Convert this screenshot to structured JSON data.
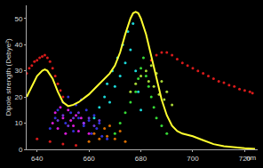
{
  "chart_data": {
    "type": "scatter",
    "y_label": "Dipole strength (Debye²)",
    "x_label": "nm",
    "xlim": [
      636,
      725
    ],
    "xticks": [
      640,
      660,
      680,
      700,
      720
    ],
    "ylim": [
      0,
      55
    ],
    "yticks": [
      0,
      10,
      20,
      30,
      40,
      50
    ],
    "grid": false,
    "series": [
      {
        "type": "scatter",
        "color": "#ff2020",
        "marker": "circle",
        "x": [
          636,
          637,
          638,
          639,
          640,
          641,
          642,
          643,
          644,
          645,
          646,
          647,
          648,
          649,
          650,
          684,
          686,
          688,
          690,
          692,
          694,
          696,
          698,
          700,
          702,
          704,
          706,
          708,
          710,
          712,
          714,
          716,
          718,
          720,
          722,
          723,
          640,
          645,
          650,
          655
        ],
        "values": [
          29,
          31,
          32,
          33.5,
          34,
          35,
          35.5,
          36,
          35,
          33.5,
          31,
          28,
          25,
          22.5,
          20,
          34,
          36,
          37,
          37,
          36,
          34.5,
          33,
          32,
          31,
          30,
          29,
          28,
          27,
          26,
          25.5,
          24.5,
          24,
          23,
          22.5,
          22,
          21.5,
          4,
          3,
          2,
          1.5
        ]
      },
      {
        "type": "scatter",
        "color": "#3a3aff",
        "marker": "circle",
        "x": [
          645,
          647,
          648,
          650,
          651,
          652,
          653,
          654,
          655,
          656,
          657,
          658,
          659,
          660,
          661,
          662,
          663,
          664,
          665,
          667
        ],
        "values": [
          8,
          12,
          15,
          18,
          10,
          20,
          14,
          7,
          17,
          12,
          19,
          9,
          15,
          11,
          6,
          13,
          8,
          10,
          5,
          4
        ]
      },
      {
        "type": "scatter",
        "color": "#ff20ff",
        "marker": "circle",
        "x": [
          646,
          647,
          648,
          649,
          650,
          651,
          652,
          653,
          654,
          655,
          656,
          657,
          658,
          660
        ],
        "values": [
          10,
          14,
          8,
          16,
          12,
          6,
          15,
          11,
          9,
          13,
          7,
          12,
          10,
          6
        ]
      },
      {
        "type": "scatter",
        "color": "#8040ff",
        "marker": "circle",
        "x": [
          648,
          650,
          652,
          654,
          656,
          658,
          660,
          662,
          664
        ],
        "values": [
          11,
          13,
          9,
          12,
          14,
          10,
          12,
          9,
          11
        ]
      },
      {
        "type": "scatter",
        "color": "#ff8000",
        "marker": "circle",
        "x": [
          660,
          662,
          664,
          666,
          667,
          668,
          670,
          672,
          674
        ],
        "values": [
          3,
          6,
          4,
          8,
          5,
          9,
          4,
          7,
          3
        ]
      },
      {
        "type": "scatter",
        "color": "#20ffff",
        "marker": "circle",
        "x": [
          662,
          664,
          666,
          667,
          668,
          669,
          670,
          671,
          672,
          673,
          674,
          675,
          676,
          677,
          678,
          679,
          680
        ],
        "values": [
          12,
          16,
          20,
          25,
          18,
          30,
          24,
          35,
          28,
          40,
          33,
          45,
          38,
          48,
          30,
          22,
          15
        ]
      },
      {
        "type": "scatter",
        "color": "#40ff40",
        "marker": "circle",
        "x": [
          670,
          672,
          674,
          676,
          678,
          679,
          680,
          681,
          682,
          683,
          684,
          685,
          686,
          688,
          690
        ],
        "values": [
          6,
          10,
          14,
          18,
          22,
          27,
          31,
          35,
          28,
          24,
          20,
          16,
          12,
          9,
          6
        ]
      },
      {
        "type": "scatter",
        "color": "#c8ff40",
        "marker": "circle",
        "x": [
          676,
          678,
          680,
          682,
          683,
          684,
          685,
          686,
          687,
          688,
          689,
          690,
          692
        ],
        "values": [
          22,
          25,
          28,
          30,
          26,
          32,
          24,
          29,
          21,
          26,
          19,
          22,
          17
        ]
      },
      {
        "type": "line",
        "color": "#ffff30",
        "x": [
          636,
          638,
          640,
          642,
          643,
          644,
          646,
          648,
          650,
          652,
          654,
          656,
          658,
          660,
          662,
          664,
          666,
          668,
          670,
          672,
          674,
          676,
          677,
          678,
          679,
          680,
          682,
          684,
          686,
          688,
          690,
          692,
          694,
          696,
          698,
          700,
          704,
          708,
          712,
          716,
          720,
          724
        ],
        "values": [
          20,
          24,
          28,
          30,
          30.5,
          30,
          27,
          22,
          18,
          16.5,
          17,
          18,
          19.5,
          21,
          23,
          25,
          27,
          29,
          32,
          37,
          44,
          50,
          52,
          52.5,
          52,
          50,
          44,
          36,
          27,
          19,
          13,
          9,
          7,
          6,
          5.5,
          5,
          3.5,
          2,
          1.2,
          0.7,
          0.4,
          0.2
        ]
      }
    ]
  }
}
